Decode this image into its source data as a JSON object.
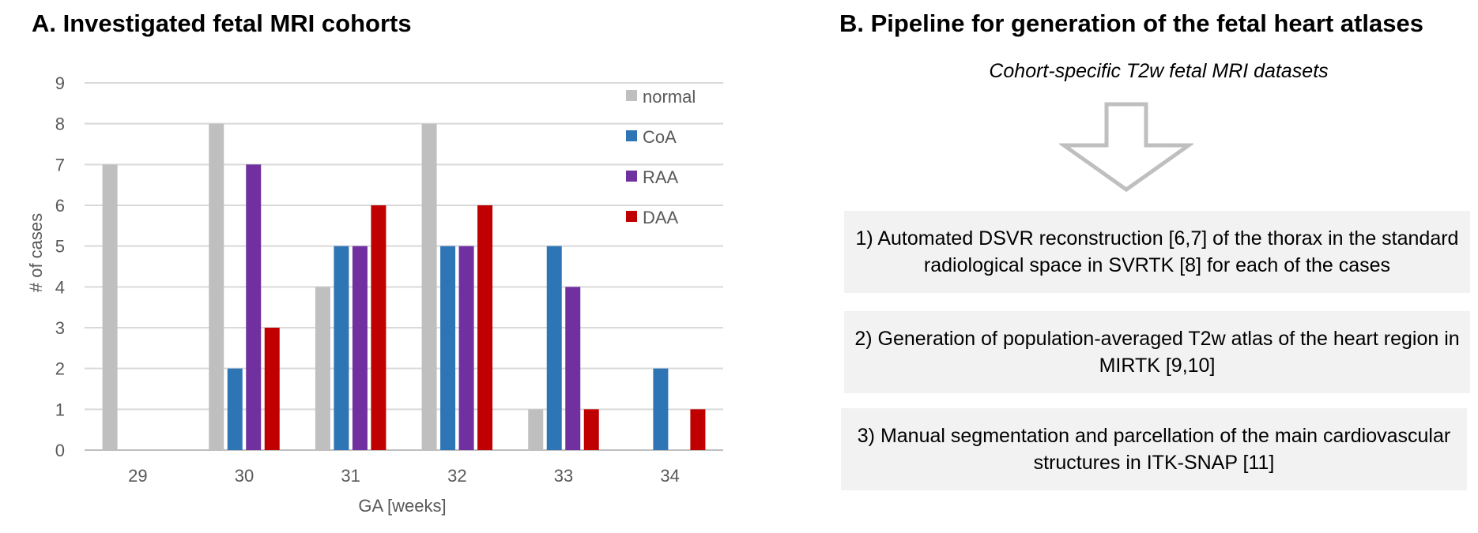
{
  "panel_a": {
    "title": "A. Investigated fetal MRI cohorts"
  },
  "panel_b": {
    "title": "B. Pipeline for generation of the fetal heart atlases",
    "header": "Cohort-specific T2w fetal MRI datasets",
    "steps": [
      "1) Automated DSVR reconstruction [6,7] of the thorax in the standard radiological space in SVRTK [8] for each of the cases",
      "2) Generation of population-averaged T2w atlas of the heart region in MIRTK [9,10]",
      "3) Manual segmentation and parcellation of the main cardiovascular structures in ITK-SNAP [11]"
    ]
  },
  "chart_data": {
    "type": "bar",
    "title": "A. Investigated fetal MRI cohorts",
    "xlabel": "GA [weeks]",
    "ylabel": "# of cases",
    "categories": [
      "29",
      "30",
      "31",
      "32",
      "33",
      "34"
    ],
    "ylim": [
      0,
      9
    ],
    "yticks": [
      "0",
      "1",
      "2",
      "3",
      "4",
      "5",
      "6",
      "7",
      "8",
      "9"
    ],
    "grid": true,
    "legend_position": "top-right",
    "series": [
      {
        "name": "normal",
        "color": "#bfbfbf",
        "values": [
          7,
          8,
          4,
          8,
          1,
          0
        ]
      },
      {
        "name": "CoA",
        "color": "#2e75b6",
        "values": [
          0,
          2,
          5,
          5,
          5,
          2
        ]
      },
      {
        "name": "RAA",
        "color": "#7030a0",
        "values": [
          0,
          7,
          5,
          5,
          4,
          0
        ]
      },
      {
        "name": "DAA",
        "color": "#c00000",
        "values": [
          0,
          3,
          6,
          6,
          1,
          1
        ]
      }
    ]
  }
}
